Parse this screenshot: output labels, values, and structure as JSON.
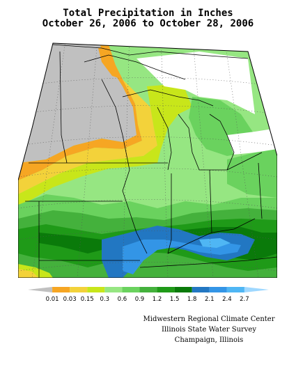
{
  "title": {
    "line1": "Total Precipitation in Inches",
    "line2": "October 26, 2006 to October 28, 2006"
  },
  "legend": {
    "labels": [
      "0.01",
      "0.03",
      "0.15",
      "0.3",
      "0.6",
      "0.9",
      "1.2",
      "1.5",
      "1.8",
      "2.1",
      "2.4",
      "2.7"
    ],
    "colors": [
      "#c0c0c0",
      "#f6a623",
      "#f3d23a",
      "#c8e61a",
      "#96e682",
      "#6ad25e",
      "#44b13c",
      "#1f9a18",
      "#0a7a0a",
      "#2277c2",
      "#3395e6",
      "#4fb6f4",
      "#9fd8ff"
    ]
  },
  "credits": {
    "line1": "Midwestern Regional Climate Center",
    "line2": "Illinois State Water Survey",
    "line3": "Champaign, Illinois"
  }
}
